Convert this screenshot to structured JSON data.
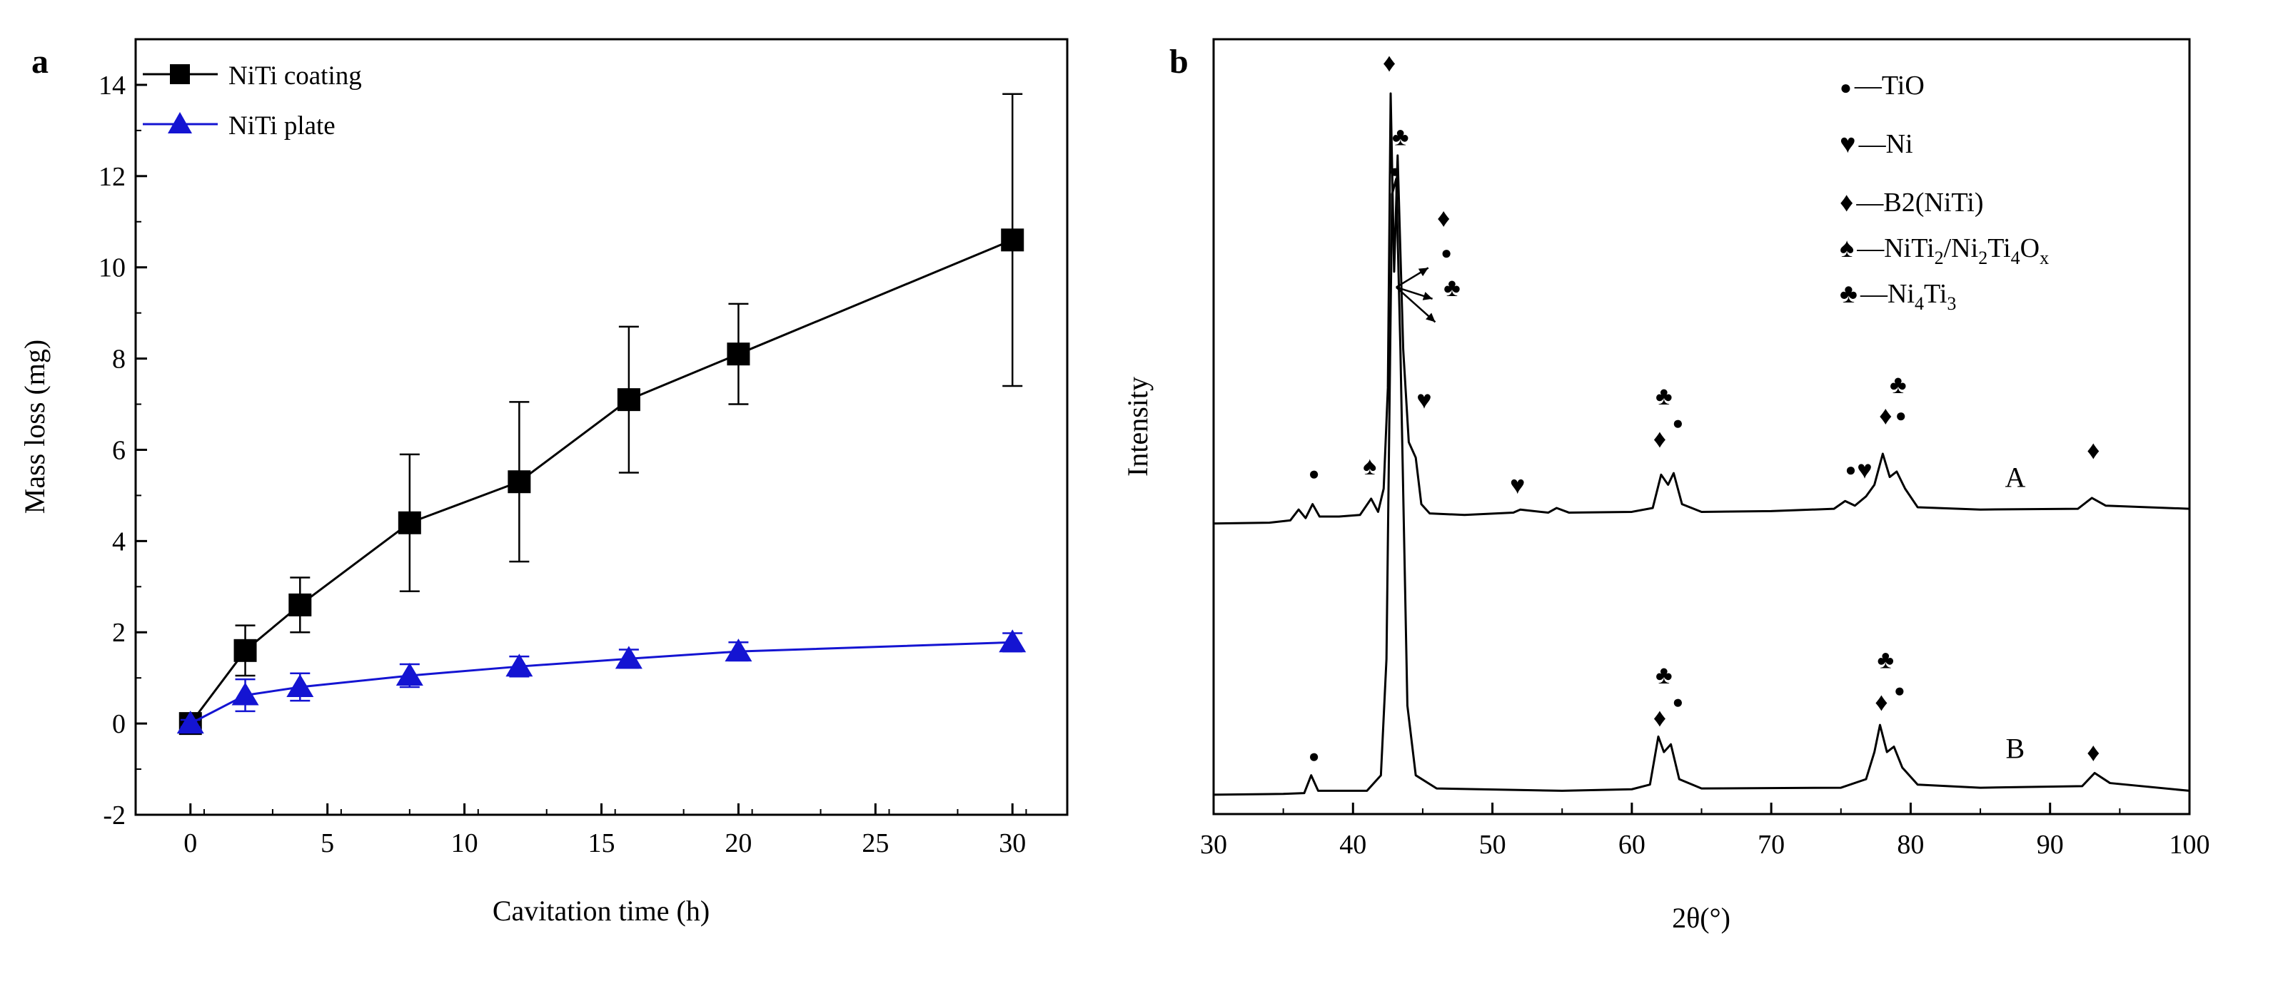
{
  "colors": {
    "coating": "#000000",
    "plate": "#1414d2",
    "axis": "#000000",
    "pattern": "#000000"
  },
  "chart_data": [
    {
      "panel": "a",
      "type": "line",
      "xlabel": "Cavitation time (h)",
      "ylabel": "Mass loss (mg)",
      "xlim": [
        -2,
        32
      ],
      "ylim": [
        -2,
        15
      ],
      "xticks": [
        0,
        5,
        10,
        15,
        20,
        25,
        30
      ],
      "yticks": [
        -2,
        0,
        2,
        4,
        6,
        8,
        10,
        12,
        14
      ],
      "legend_position": "top-left",
      "series": [
        {
          "name": "NiTi coating",
          "marker": "square",
          "x": [
            0,
            2,
            4,
            8,
            12,
            16,
            20,
            30
          ],
          "y": [
            0.0,
            1.6,
            2.6,
            4.4,
            5.3,
            7.1,
            8.1,
            10.6
          ],
          "err": [
            0.1,
            0.55,
            0.6,
            1.5,
            1.75,
            1.6,
            1.1,
            3.2
          ]
        },
        {
          "name": "NiTi plate",
          "marker": "triangle",
          "x": [
            0,
            2,
            4,
            8,
            12,
            16,
            20,
            30
          ],
          "y": [
            0.0,
            0.62,
            0.8,
            1.05,
            1.25,
            1.42,
            1.58,
            1.78
          ],
          "err": [
            0.08,
            0.35,
            0.3,
            0.25,
            0.22,
            0.2,
            0.2,
            0.2
          ]
        }
      ]
    },
    {
      "panel": "b",
      "type": "line",
      "xlabel": "2θ(°)",
      "ylabel": "Intensity",
      "xlim": [
        30,
        100
      ],
      "xticks": [
        30,
        40,
        50,
        60,
        70,
        80,
        90,
        100
      ],
      "ylim": [
        0,
        100
      ],
      "yticks": [],
      "legend_position": "top-right",
      "legend": [
        {
          "symbol": "●",
          "name": "—TiO"
        },
        {
          "symbol": "♥",
          "name": "—Ni"
        },
        {
          "symbol": "♦",
          "name": "—B2(NiTi)"
        },
        {
          "symbol": "♠",
          "name": "—NiTi",
          "sub1": "2",
          "mid": "/Ni",
          "sub2": "2",
          "mid2": "Ti",
          "sub3": "4",
          "mid3": "O",
          "sub4": "x"
        },
        {
          "symbol": "♣",
          "name": "—Ni",
          "sub1": "4",
          "mid": "Ti",
          "sub2": "3"
        }
      ],
      "series": [
        {
          "name": "A",
          "baseline": 38,
          "points": [
            [
              30,
              37.5
            ],
            [
              34,
              37.6
            ],
            [
              35.5,
              37.9
            ],
            [
              36.1,
              39.3
            ],
            [
              36.6,
              38.2
            ],
            [
              37.1,
              40.0
            ],
            [
              37.6,
              38.4
            ],
            [
              39,
              38.4
            ],
            [
              40.5,
              38.6
            ],
            [
              41.3,
              40.7
            ],
            [
              41.8,
              39.0
            ],
            [
              42.2,
              42.0
            ],
            [
              42.5,
              55.0
            ],
            [
              42.7,
              93.0
            ],
            [
              42.95,
              70.0
            ],
            [
              43.2,
              85.0
            ],
            [
              43.6,
              60.0
            ],
            [
              44.0,
              48.0
            ],
            [
              44.5,
              46.0
            ],
            [
              44.9,
              40.0
            ],
            [
              45.5,
              38.8
            ],
            [
              48,
              38.6
            ],
            [
              51.5,
              38.9
            ],
            [
              52,
              39.3
            ],
            [
              54,
              38.9
            ],
            [
              54.6,
              39.5
            ],
            [
              55.5,
              38.9
            ],
            [
              60,
              39.0
            ],
            [
              61.5,
              39.5
            ],
            [
              62.1,
              43.8
            ],
            [
              62.6,
              42.5
            ],
            [
              63.0,
              44.0
            ],
            [
              63.6,
              40.0
            ],
            [
              65,
              39.0
            ],
            [
              70,
              39.1
            ],
            [
              74.5,
              39.4
            ],
            [
              75.3,
              40.4
            ],
            [
              76.0,
              39.8
            ],
            [
              76.8,
              41.0
            ],
            [
              77.4,
              42.5
            ],
            [
              78.0,
              46.5
            ],
            [
              78.5,
              43.5
            ],
            [
              79.0,
              44.2
            ],
            [
              79.6,
              42.0
            ],
            [
              80.5,
              39.6
            ],
            [
              85,
              39.3
            ],
            [
              92,
              39.4
            ],
            [
              93.0,
              40.8
            ],
            [
              94,
              39.8
            ],
            [
              100,
              39.4
            ]
          ]
        },
        {
          "name": "B",
          "baseline": 2.5,
          "points": [
            [
              30,
              2.5
            ],
            [
              35,
              2.6
            ],
            [
              36.5,
              2.7
            ],
            [
              37.0,
              5.0
            ],
            [
              37.5,
              3.0
            ],
            [
              41,
              3.0
            ],
            [
              42.0,
              5.0
            ],
            [
              42.4,
              20.0
            ],
            [
              42.8,
              80.0
            ],
            [
              43.1,
              82.0
            ],
            [
              43.4,
              60.0
            ],
            [
              43.9,
              14.0
            ],
            [
              44.5,
              5.0
            ],
            [
              46,
              3.3
            ],
            [
              55,
              3.0
            ],
            [
              60,
              3.2
            ],
            [
              61.3,
              3.8
            ],
            [
              61.9,
              10.0
            ],
            [
              62.3,
              8.0
            ],
            [
              62.8,
              9.0
            ],
            [
              63.4,
              4.5
            ],
            [
              65,
              3.3
            ],
            [
              75,
              3.4
            ],
            [
              76.8,
              4.5
            ],
            [
              77.4,
              8.0
            ],
            [
              77.8,
              11.5
            ],
            [
              78.3,
              8.0
            ],
            [
              78.8,
              8.7
            ],
            [
              79.4,
              6.0
            ],
            [
              80.5,
              3.8
            ],
            [
              85,
              3.4
            ],
            [
              92.3,
              3.6
            ],
            [
              93.2,
              5.3
            ],
            [
              94.3,
              4.0
            ],
            [
              100,
              3.0
            ]
          ]
        }
      ],
      "annotations": [
        {
          "symbols": "♦",
          "x": 42.6,
          "y": 97
        },
        {
          "symbols": "♣",
          "x": 43.4,
          "y": 87.5
        },
        {
          "symbols": "●",
          "x": 43.0,
          "y": 83
        },
        {
          "symbols": "♦",
          "x": 46.5,
          "y": 77
        },
        {
          "symbols": "●",
          "x": 46.7,
          "y": 72.5
        },
        {
          "symbols": "♣",
          "x": 47.1,
          "y": 68
        },
        {
          "symbols": "♥",
          "x": 45.1,
          "y": 53.5
        },
        {
          "symbols": "●",
          "x": 37.2,
          "y": 44
        },
        {
          "symbols": "♠",
          "x": 41.2,
          "y": 45
        },
        {
          "symbols": "♥",
          "x": 51.8,
          "y": 42.5
        },
        {
          "symbols": "♣",
          "x": 62.3,
          "y": 54
        },
        {
          "symbols": "●",
          "x": 63.3,
          "y": 50.5
        },
        {
          "symbols": "♦",
          "x": 62.0,
          "y": 48.5
        },
        {
          "symbols": "●",
          "x": 75.7,
          "y": 44.5
        },
        {
          "symbols": "♥",
          "x": 76.7,
          "y": 44.5
        },
        {
          "symbols": "♣",
          "x": 79.1,
          "y": 55.5
        },
        {
          "symbols": "●",
          "x": 79.3,
          "y": 51.5
        },
        {
          "symbols": "♦",
          "x": 78.2,
          "y": 51.5
        },
        {
          "symbols": "♦",
          "x": 93.1,
          "y": 47
        },
        {
          "symbols": "●",
          "x": 37.2,
          "y": 7.5
        },
        {
          "symbols": "♣",
          "x": 62.3,
          "y": 18
        },
        {
          "symbols": "●",
          "x": 63.3,
          "y": 14.5
        },
        {
          "symbols": "♦",
          "x": 62.0,
          "y": 12.5
        },
        {
          "symbols": "♣",
          "x": 78.2,
          "y": 20
        },
        {
          "symbols": "●",
          "x": 79.2,
          "y": 16
        },
        {
          "symbols": "♦",
          "x": 77.9,
          "y": 14.5
        },
        {
          "symbols": "♦",
          "x": 93.1,
          "y": 8
        }
      ],
      "arrows": [
        {
          "from": [
            43.1,
            68
          ],
          "to": [
            45.4,
            70.5
          ]
        },
        {
          "from": [
            43.1,
            68
          ],
          "to": [
            45.7,
            66.5
          ]
        },
        {
          "from": [
            43.1,
            68
          ],
          "to": [
            45.9,
            63.5
          ]
        }
      ],
      "curve_labels": [
        {
          "text": "A",
          "x": 87.5,
          "y": 43.5
        },
        {
          "text": "B",
          "x": 87.5,
          "y": 8.5
        }
      ]
    }
  ]
}
